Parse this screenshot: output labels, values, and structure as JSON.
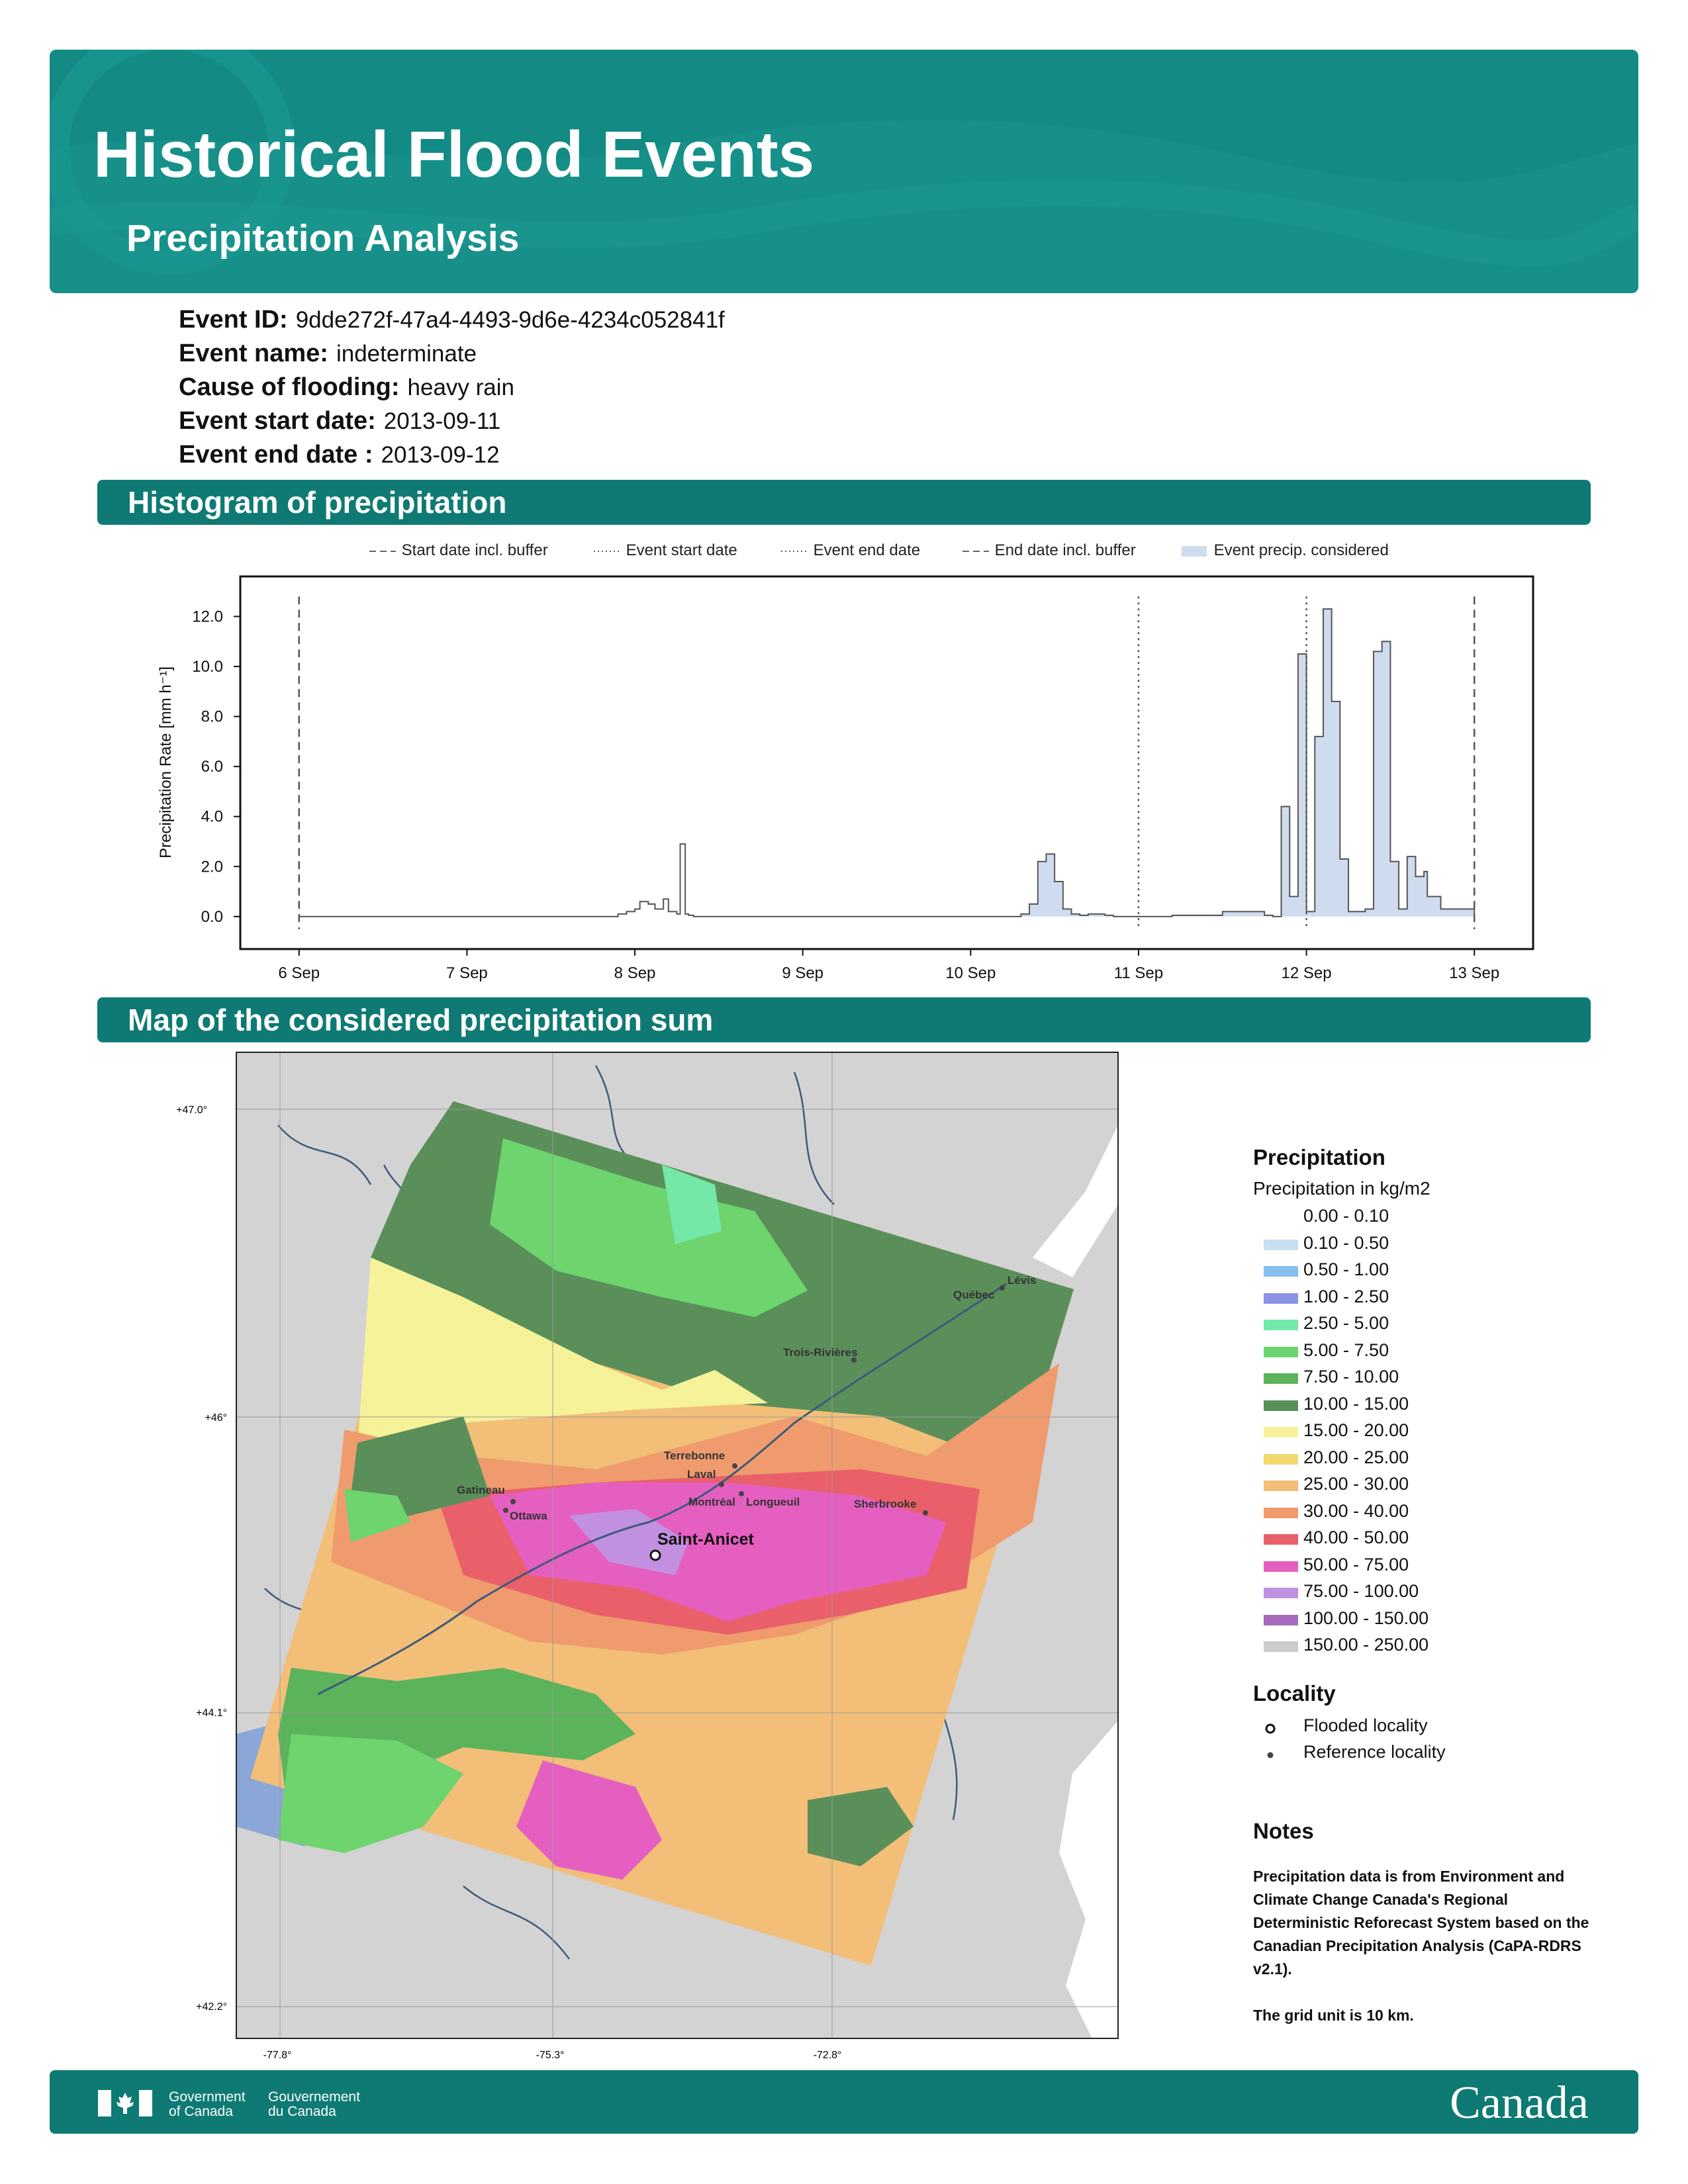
{
  "header": {
    "title": "Historical Flood Events",
    "subtitle": "Precipitation Analysis"
  },
  "event": {
    "id_label": "Event ID:",
    "id_value": "9dde272f-47a4-4493-9d6e-4234c052841f",
    "name_label": "Event name:",
    "name_value": "indeterminate",
    "cause_label": "Cause of flooding:",
    "cause_value": "heavy rain",
    "start_label": "Event start date:",
    "start_value": "2013-09-11",
    "end_label": "Event end date :",
    "end_value": "2013-09-12"
  },
  "sections": {
    "histogram": "Histogram of precipitation",
    "map": "Map of the considered precipitation sum"
  },
  "histogram_legend": {
    "start_buffer": "Start date incl. buffer",
    "event_start": "Event start date",
    "event_end": "Event end date",
    "end_buffer": "End date incl. buffer",
    "considered": "Event precip. considered"
  },
  "chart_data": {
    "type": "area",
    "ylabel": "Precipitation Rate [mm h⁻¹]",
    "ylim": [
      -1.3,
      13.6
    ],
    "yticks": [
      "0.0",
      "2.0",
      "4.0",
      "6.0",
      "8.0",
      "10.0",
      "12.0"
    ],
    "xticks": [
      "6 Sep",
      "7 Sep",
      "8 Sep",
      "9 Sep",
      "10 Sep",
      "11 Sep",
      "12 Sep",
      "13 Sep"
    ],
    "x_unit": "days from 6 Sep",
    "xlim": [
      -0.35,
      7.35
    ],
    "vlines": {
      "start_buffer": 0,
      "event_start": 5,
      "event_end": 6,
      "end_buffer": 7
    },
    "considered_range": [
      4.2,
      7.0
    ],
    "series": [
      {
        "x": [
          0,
          1.9,
          1.95,
          2.0,
          2.03,
          2.08,
          2.12,
          2.17,
          2.2,
          2.25,
          2.27,
          2.3,
          2.32,
          2.35,
          2.8,
          4.3,
          4.35,
          4.4,
          4.45,
          4.5,
          4.55,
          4.6,
          4.65,
          4.7,
          4.8,
          4.85,
          5.2,
          5.5,
          5.6,
          5.75,
          5.8,
          5.85,
          5.9,
          5.95,
          6.0,
          6.05,
          6.1,
          6.15,
          6.2,
          6.25,
          6.3,
          6.35,
          6.4,
          6.45,
          6.5,
          6.55,
          6.6,
          6.65,
          6.7,
          6.72,
          6.8,
          7.0
        ],
        "y": [
          0,
          0.1,
          0.2,
          0.3,
          0.6,
          0.5,
          0.3,
          0.7,
          0.2,
          0.1,
          2.9,
          0.1,
          0.05,
          0,
          0,
          0.1,
          0.5,
          2.2,
          2.5,
          1.4,
          0.3,
          0.1,
          0.05,
          0.1,
          0.05,
          0,
          0.05,
          0.2,
          0.2,
          0.05,
          0,
          4.4,
          0.8,
          10.5,
          0.2,
          7.2,
          12.3,
          8.6,
          2.3,
          0.2,
          0.2,
          0.3,
          10.6,
          11.0,
          2.2,
          0.3,
          2.4,
          1.6,
          1.8,
          0.8,
          0.3,
          0
        ]
      }
    ]
  },
  "map": {
    "lat_labels": [
      "+47.0°",
      "+46°",
      "+44.1°",
      "+42.2°"
    ],
    "lon_labels": [
      "-77.8°",
      "-75.3°",
      "-72.8°"
    ],
    "cities": [
      "Québec",
      "Lévis",
      "Trois-Rivières",
      "Terrebonne",
      "Laval",
      "Montréal",
      "Longueuil",
      "Sherbrooke",
      "Gatineau",
      "Ottawa"
    ],
    "flooded_locality": "Saint-Anicet"
  },
  "precip_legend": {
    "title": "Precipitation",
    "subtitle": "Precipitation in kg/m2",
    "classes": [
      {
        "label": "0.00 - 0.10",
        "color": "#ffffff"
      },
      {
        "label": "0.10 - 0.50",
        "color": "#c6dff3"
      },
      {
        "label": "0.50 - 1.00",
        "color": "#85c0ef"
      },
      {
        "label": "1.00 - 2.50",
        "color": "#8a93e6"
      },
      {
        "label": "2.50 - 5.00",
        "color": "#74e8a8"
      },
      {
        "label": "5.00 - 7.50",
        "color": "#6dd46e"
      },
      {
        "label": "7.50 - 10.00",
        "color": "#5bb35b"
      },
      {
        "label": "10.00 - 15.00",
        "color": "#5a8f5a"
      },
      {
        "label": "15.00 - 20.00",
        "color": "#f5f29a"
      },
      {
        "label": "20.00 - 25.00",
        "color": "#f3d870"
      },
      {
        "label": "25.00 - 30.00",
        "color": "#f2be78"
      },
      {
        "label": "30.00 - 40.00",
        "color": "#ef9b6d"
      },
      {
        "label": "40.00 - 50.00",
        "color": "#e9606a"
      },
      {
        "label": "50.00 - 75.00",
        "color": "#e55fc1"
      },
      {
        "label": "75.00 - 100.00",
        "color": "#c290e0"
      },
      {
        "label": "100.00 - 150.00",
        "color": "#a569bd"
      },
      {
        "label": "150.00 - 250.00",
        "color": "#cbcbcb"
      }
    ]
  },
  "locality_legend": {
    "title": "Locality",
    "flooded": "Flooded locality",
    "reference": "Reference locality"
  },
  "notes": {
    "title": "Notes",
    "text1": "Precipitation data is from Environment and Climate Change Canada's Regional Deterministic Reforecast System based on the Canadian Precipitation Analysis (CaPA-RDRS v2.1).",
    "text2": "The grid unit is 10 km."
  },
  "footer": {
    "gov_en_1": "Government",
    "gov_en_2": "of Canada",
    "gov_fr_1": "Gouvernement",
    "gov_fr_2": "du Canada",
    "wordmark": "Canada"
  }
}
